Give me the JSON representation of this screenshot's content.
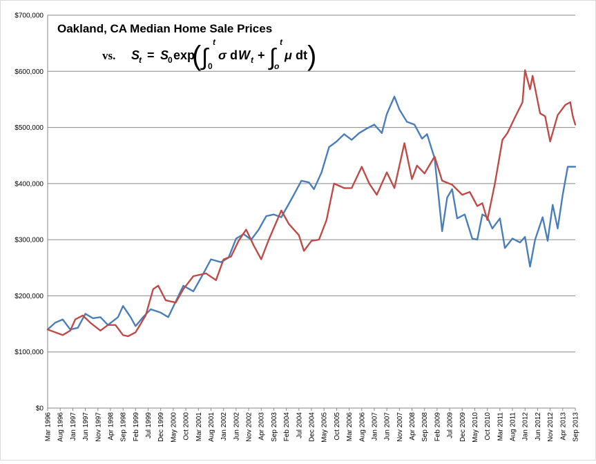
{
  "chart_data": {
    "type": "line",
    "title": "Oakland, CA Median Home Sale Prices",
    "subtitle": {
      "prefix": "vs.",
      "formula": "S_t = S_0 exp( ∫_0^t σ dW_t + ∫_o^t μ dt )"
    },
    "xlabel": "",
    "ylabel": "",
    "ylim": [
      0,
      700000
    ],
    "y_ticks": [
      "$0",
      "$100,000",
      "$200,000",
      "$300,000",
      "$400,000",
      "$500,000",
      "$600,000",
      "$700,000"
    ],
    "x_start": "Mar 1996",
    "x_end": "Sep 2013",
    "x_tick_labels": [
      "Mar 1996",
      "Aug 1996",
      "Jan 1997",
      "Jun 1997",
      "Nov 1997",
      "Apr 1998",
      "Sep 1998",
      "Feb 1999",
      "Jul 1999",
      "Dec 1999",
      "May 2000",
      "Oct 2000",
      "Mar 2001",
      "Aug 2001",
      "Jan 2002",
      "Jun 2002",
      "Nov 2002",
      "Apr 2003",
      "Sep 2003",
      "Feb 2004",
      "Jul 2004",
      "Dec 2004",
      "May 2005",
      "Oct 2005",
      "Mar 2006",
      "Aug 2006",
      "Jan 2007",
      "Jun 2007",
      "Nov 2007",
      "Apr 2008",
      "Sep 2008",
      "Feb 2009",
      "Jul 2009",
      "Dec 2009",
      "May 2010",
      "Oct 2010",
      "Mar 2011",
      "Aug 2011",
      "Jan 2012",
      "Jun 2012",
      "Nov 2012",
      "Apr 2013",
      "Sep 2013"
    ],
    "grid": "horizontal",
    "legend": "none",
    "series": [
      {
        "color": "#4a7ebb",
        "points": [
          [
            "Mar 1996",
            140000
          ],
          [
            "Jun 1996",
            152000
          ],
          [
            "Sep 1996",
            158000
          ],
          [
            "Dec 1996",
            140000
          ],
          [
            "Mar 1997",
            143000
          ],
          [
            "Jun 1997",
            168000
          ],
          [
            "Sep 1997",
            160000
          ],
          [
            "Dec 1997",
            162000
          ],
          [
            "Mar 1998",
            148000
          ],
          [
            "Jul 1998",
            162000
          ],
          [
            "Sep 1998",
            182000
          ],
          [
            "Dec 1998",
            162000
          ],
          [
            "Feb 1999",
            146000
          ],
          [
            "May 1999",
            162000
          ],
          [
            "Aug 1999",
            176000
          ],
          [
            "Dec 1999",
            170000
          ],
          [
            "Mar 2000",
            162000
          ],
          [
            "Jun 2000",
            190000
          ],
          [
            "Sep 2000",
            218000
          ],
          [
            "Jan 2001",
            208000
          ],
          [
            "May 2001",
            240000
          ],
          [
            "Aug 2001",
            265000
          ],
          [
            "Dec 2001",
            260000
          ],
          [
            "Mar 2002",
            268000
          ],
          [
            "Jun 2002",
            302000
          ],
          [
            "Sep 2002",
            310000
          ],
          [
            "Dec 2002",
            300000
          ],
          [
            "Mar 2003",
            318000
          ],
          [
            "Jun 2003",
            342000
          ],
          [
            "Sep 2003",
            345000
          ],
          [
            "Dec 2003",
            340000
          ],
          [
            "Apr 2004",
            372000
          ],
          [
            "Aug 2004",
            405000
          ],
          [
            "Nov 2004",
            402000
          ],
          [
            "Jan 2005",
            390000
          ],
          [
            "Apr 2005",
            420000
          ],
          [
            "Jul 2005",
            465000
          ],
          [
            "Oct 2005",
            475000
          ],
          [
            "Jan 2006",
            488000
          ],
          [
            "Apr 2006",
            478000
          ],
          [
            "Jul 2006",
            490000
          ],
          [
            "Oct 2006",
            498000
          ],
          [
            "Jan 2007",
            505000
          ],
          [
            "Apr 2007",
            490000
          ],
          [
            "Jun 2007",
            524000
          ],
          [
            "Sep 2007",
            555000
          ],
          [
            "Nov 2007",
            532000
          ],
          [
            "Feb 2008",
            510000
          ],
          [
            "May 2008",
            505000
          ],
          [
            "Aug 2008",
            480000
          ],
          [
            "Oct 2008",
            488000
          ],
          [
            "Jan 2009",
            445000
          ],
          [
            "Mar 2009",
            360000
          ],
          [
            "Apr 2009",
            315000
          ],
          [
            "Jun 2009",
            375000
          ],
          [
            "Aug 2009",
            390000
          ],
          [
            "Oct 2009",
            338000
          ],
          [
            "Jan 2010",
            345000
          ],
          [
            "Apr 2010",
            302000
          ],
          [
            "Jun 2010",
            300000
          ],
          [
            "Aug 2010",
            345000
          ],
          [
            "Oct 2010",
            340000
          ],
          [
            "Dec 2010",
            320000
          ],
          [
            "Mar 2011",
            338000
          ],
          [
            "May 2011",
            285000
          ],
          [
            "Aug 2011",
            302000
          ],
          [
            "Nov 2011",
            295000
          ],
          [
            "Jan 2012",
            305000
          ],
          [
            "Mar 2012",
            252000
          ],
          [
            "May 2012",
            300000
          ],
          [
            "Aug 2012",
            340000
          ],
          [
            "Oct 2012",
            298000
          ],
          [
            "Dec 2012",
            362000
          ],
          [
            "Feb 2013",
            320000
          ],
          [
            "Apr 2013",
            380000
          ],
          [
            "Jun 2013",
            430000
          ],
          [
            "Sep 2013",
            430000
          ]
        ]
      },
      {
        "color": "#be4b48",
        "points": [
          [
            "Mar 1996",
            140000
          ],
          [
            "Jun 1996",
            135000
          ],
          [
            "Sep 1996",
            130000
          ],
          [
            "Dec 1996",
            138000
          ],
          [
            "Feb 1997",
            158000
          ],
          [
            "May 1997",
            165000
          ],
          [
            "Aug 1997",
            152000
          ],
          [
            "Dec 1997",
            138000
          ],
          [
            "Mar 1998",
            148000
          ],
          [
            "Jun 1998",
            148000
          ],
          [
            "Sep 1998",
            130000
          ],
          [
            "Nov 1998",
            128000
          ],
          [
            "Feb 1999",
            135000
          ],
          [
            "Jun 1999",
            165000
          ],
          [
            "Sep 1999",
            212000
          ],
          [
            "Nov 1999",
            218000
          ],
          [
            "Feb 2000",
            192000
          ],
          [
            "Jun 2000",
            188000
          ],
          [
            "Sep 2000",
            212000
          ],
          [
            "Jan 2001",
            235000
          ],
          [
            "Jun 2001",
            240000
          ],
          [
            "Oct 2001",
            228000
          ],
          [
            "Jan 2002",
            265000
          ],
          [
            "Apr 2002",
            270000
          ],
          [
            "Jul 2002",
            298000
          ],
          [
            "Oct 2002",
            318000
          ],
          [
            "Jan 2003",
            290000
          ],
          [
            "Apr 2003",
            265000
          ],
          [
            "Jul 2003",
            300000
          ],
          [
            "Dec 2003",
            352000
          ],
          [
            "Mar 2004",
            328000
          ],
          [
            "Jul 2004",
            308000
          ],
          [
            "Sep 2004",
            280000
          ],
          [
            "Dec 2004",
            298000
          ],
          [
            "Mar 2005",
            300000
          ],
          [
            "Jun 2005",
            335000
          ],
          [
            "Sep 2005",
            400000
          ],
          [
            "Jan 2006",
            392000
          ],
          [
            "Apr 2006",
            392000
          ],
          [
            "Aug 2006",
            430000
          ],
          [
            "Nov 2006",
            400000
          ],
          [
            "Feb 2007",
            380000
          ],
          [
            "Jun 2007",
            420000
          ],
          [
            "Sep 2007",
            392000
          ],
          [
            "Jan 2008",
            472000
          ],
          [
            "Apr 2008",
            408000
          ],
          [
            "Jun 2008",
            432000
          ],
          [
            "Sep 2008",
            418000
          ],
          [
            "Jan 2009",
            448000
          ],
          [
            "Apr 2009",
            405000
          ],
          [
            "Aug 2009",
            398000
          ],
          [
            "Dec 2009",
            380000
          ],
          [
            "Mar 2010",
            385000
          ],
          [
            "Jun 2010",
            360000
          ],
          [
            "Aug 2010",
            365000
          ],
          [
            "Oct 2010",
            335000
          ],
          [
            "Jan 2011",
            400000
          ],
          [
            "Apr 2011",
            478000
          ],
          [
            "Jun 2011",
            490000
          ],
          [
            "Sep 2011",
            518000
          ],
          [
            "Dec 2011",
            545000
          ],
          [
            "Jan 2012",
            602000
          ],
          [
            "Mar 2012",
            568000
          ],
          [
            "Apr 2012",
            592000
          ],
          [
            "Jul 2012",
            525000
          ],
          [
            "Sep 2012",
            520000
          ],
          [
            "Nov 2012",
            475000
          ],
          [
            "Feb 2013",
            522000
          ],
          [
            "May 2013",
            540000
          ],
          [
            "Jul 2013",
            545000
          ],
          [
            "Aug 2013",
            520000
          ],
          [
            "Sep 2013",
            505000
          ]
        ]
      }
    ]
  }
}
